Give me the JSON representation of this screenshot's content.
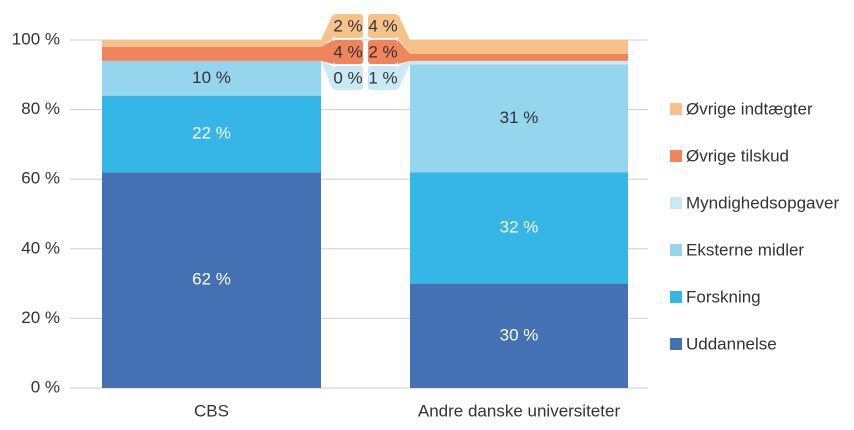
{
  "chart_data": {
    "type": "stacked_bar",
    "categories": [
      "CBS",
      "Andre danske universiteter"
    ],
    "series": [
      {
        "name": "Uddannelse",
        "color": "#4470b4",
        "values": [
          62,
          30
        ],
        "value_labels": [
          "62 %",
          "30 %"
        ]
      },
      {
        "name": "Forskning",
        "color": "#35b6e6",
        "values": [
          22,
          32
        ],
        "value_labels": [
          "22 %",
          "32 %"
        ]
      },
      {
        "name": "Eksterne midler",
        "color": "#96d5ee",
        "values": [
          10,
          31
        ],
        "value_labels": [
          "10 %",
          "31 %"
        ]
      },
      {
        "name": "Myndighedsopgaver",
        "color": "#c9e9f6",
        "values": [
          0,
          1
        ],
        "value_labels": [
          "0 %",
          "1 %"
        ]
      },
      {
        "name": "Øvrige tilskud",
        "color": "#f0845a",
        "values": [
          4,
          2
        ],
        "value_labels": [
          "4 %",
          "2 %"
        ]
      },
      {
        "name": "Øvrige indtægter",
        "color": "#f7c28a",
        "values": [
          2,
          4
        ],
        "value_labels": [
          "2 %",
          "4 %"
        ]
      }
    ],
    "ylim": [
      0,
      100
    ],
    "yticks": [
      {
        "value": 0,
        "label": "0 %"
      },
      {
        "value": 20,
        "label": "20 %"
      },
      {
        "value": 40,
        "label": "40 %"
      },
      {
        "value": 60,
        "label": "60 %"
      },
      {
        "value": 80,
        "label": "80 %"
      },
      {
        "value": 100,
        "label": "100 %"
      }
    ],
    "grid": true,
    "legend": "right"
  }
}
